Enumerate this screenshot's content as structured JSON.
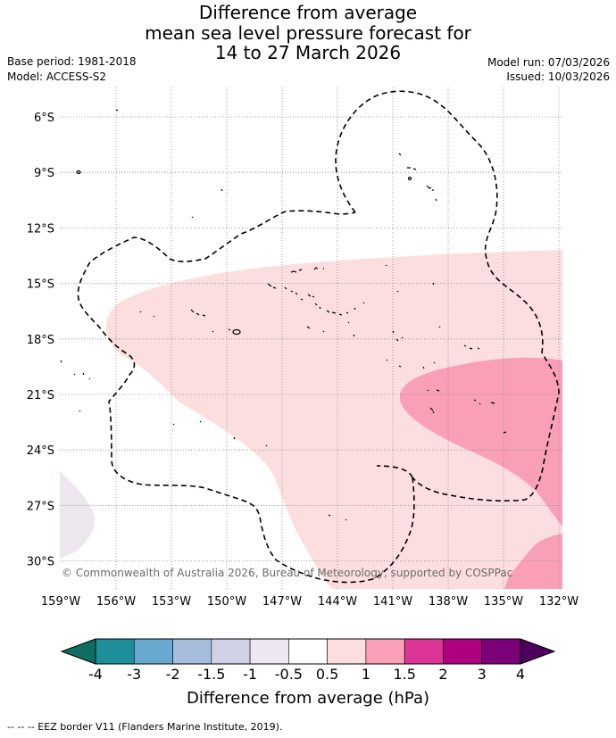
{
  "title": {
    "line1": "Difference from average",
    "line2": "mean sea level pressure forecast for",
    "line3": "14 to 27 March 2026"
  },
  "meta": {
    "base_period": "Base period: 1981-2018",
    "model": "Model: ACCESS-S2",
    "model_run": "Model run: 07/03/2026",
    "issued": "Issued: 10/03/2026"
  },
  "map": {
    "lon_labels": [
      "159°W",
      "156°W",
      "153°W",
      "150°W",
      "147°W",
      "144°W",
      "141°W",
      "138°W",
      "135°W",
      "132°W"
    ],
    "lat_labels": [
      "6°S",
      "9°S",
      "12°S",
      "15°S",
      "18°S",
      "21°S",
      "24°S",
      "27°S",
      "30°S"
    ],
    "copyright": "© Commonwealth of Australia 2026, Bureau of Meteorology, supported by COSPPac",
    "regions": [
      {
        "name": "region-0.5-to-1",
        "color": "#fddede"
      },
      {
        "name": "region-1-to-1.5",
        "color": "#f99fb6"
      },
      {
        "name": "region-minus1-to-minus0.5",
        "color": "#ede6ee"
      }
    ]
  },
  "colorbar": {
    "title": "Difference from average (hPa)",
    "tick_labels": [
      "-4",
      "-3",
      "-2",
      "-1.5",
      "-1",
      "-0.5",
      "0.5",
      "1",
      "1.5",
      "2",
      "3",
      "4"
    ],
    "low_color": "#0d6e62",
    "high_color": "#4d005d",
    "colors": [
      "#1e8e9a",
      "#68a9d0",
      "#a6bddb",
      "#d0d1e6",
      "#ece7f2",
      "#ffffff",
      "#fddede",
      "#f99fb6",
      "#dd3497",
      "#ae017e",
      "#7a0177"
    ]
  },
  "footer": {
    "legend": "--  --  -- EEZ border V11 (Flanders Marine Institute, 2019)."
  }
}
